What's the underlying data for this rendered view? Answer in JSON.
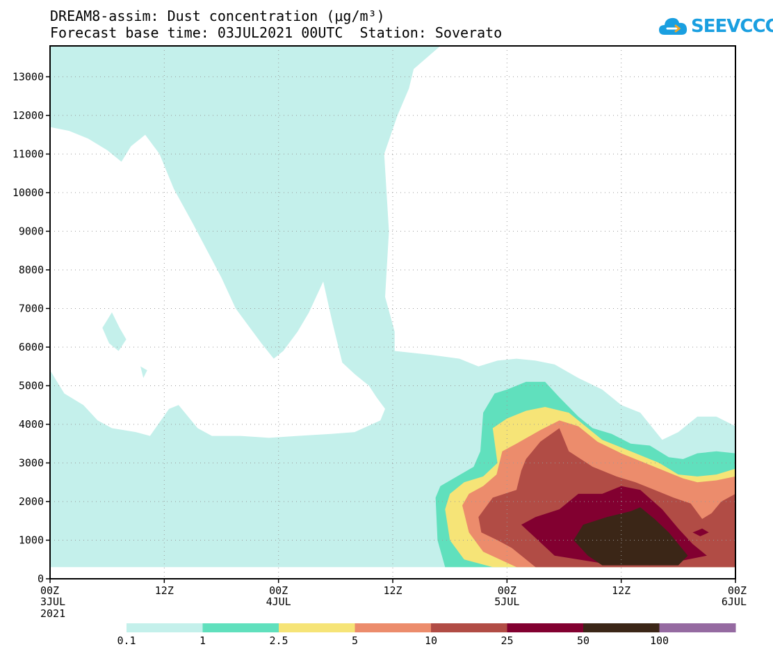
{
  "title": "DREAM8-assim: Dust concentration (μg/m³)",
  "subtitle": "Forecast base time: 03JUL2021 00UTC  Station: Soverato",
  "logo": {
    "text": "SEEVCCC",
    "icon": "cloud-icon",
    "color": "#1a9fe0"
  },
  "chart_data": {
    "type": "heatmap",
    "subtype": "filled-contour time-height cross-section",
    "title": "DREAM8-assim: Dust concentration (μg/m³)",
    "subtitle": "Forecast base time: 03JUL2021 00UTC  Station: Soverato",
    "xlabel": "",
    "ylabel": "",
    "x_ticks": [
      {
        "hour": 0,
        "label": "00Z",
        "sub": "3JUL",
        "sub2": "2021"
      },
      {
        "hour": 12,
        "label": "12Z",
        "sub": "",
        "sub2": ""
      },
      {
        "hour": 24,
        "label": "00Z",
        "sub": "4JUL",
        "sub2": ""
      },
      {
        "hour": 36,
        "label": "12Z",
        "sub": "",
        "sub2": ""
      },
      {
        "hour": 48,
        "label": "00Z",
        "sub": "5JUL",
        "sub2": ""
      },
      {
        "hour": 60,
        "label": "12Z",
        "sub": "",
        "sub2": ""
      },
      {
        "hour": 72,
        "label": "00Z",
        "sub": "6JUL",
        "sub2": ""
      }
    ],
    "xlim": [
      0,
      72
    ],
    "y_ticks": [
      0,
      1000,
      2000,
      3000,
      4000,
      5000,
      6000,
      7000,
      8000,
      9000,
      10000,
      11000,
      12000,
      13000
    ],
    "ylim": [
      0,
      13800
    ],
    "grid": true,
    "legend": {
      "placement": "bottom",
      "levels": [
        "0.1",
        "1",
        "2.5",
        "5",
        "10",
        "25",
        "50",
        "100"
      ],
      "colors": [
        "#c4f0eb",
        "#60e0bd",
        "#f6e477",
        "#ec8c6c",
        "#b14c45",
        "#820030",
        "#3b2617",
        "#956aa1"
      ]
    },
    "contours": [
      {
        "level": "0.1",
        "color": "#c4f0eb",
        "points": [
          [
            0,
            300
          ],
          [
            72,
            300
          ],
          [
            72,
            3950
          ],
          [
            70,
            4200
          ],
          [
            68,
            4200
          ],
          [
            66,
            3800
          ],
          [
            64.3,
            3600
          ],
          [
            62,
            4300
          ],
          [
            60,
            4500
          ],
          [
            58,
            4900
          ],
          [
            55.5,
            5200
          ],
          [
            53,
            5550
          ],
          [
            51,
            5650
          ],
          [
            49,
            5700
          ],
          [
            47,
            5650
          ],
          [
            45,
            5500
          ],
          [
            43,
            5700
          ],
          [
            40,
            5800
          ],
          [
            36.2,
            5900
          ],
          [
            36.2,
            6400
          ],
          [
            35.2,
            7300
          ],
          [
            35.6,
            9000
          ],
          [
            35.1,
            11000
          ],
          [
            36.5,
            12000
          ],
          [
            37.7,
            12700
          ],
          [
            38.2,
            13200
          ],
          [
            41,
            13800
          ],
          [
            0,
            13800
          ]
        ]
      },
      {
        "level": "0.1-hole-a",
        "color": "#ffffff",
        "points": [
          [
            0,
            11700
          ],
          [
            2,
            11600
          ],
          [
            4,
            11400
          ],
          [
            6,
            11100
          ],
          [
            7.5,
            10800
          ],
          [
            8.5,
            11200
          ],
          [
            10,
            11500
          ],
          [
            11.5,
            11000
          ],
          [
            13,
            10100
          ],
          [
            15,
            9200
          ],
          [
            16.5,
            8500
          ],
          [
            18,
            7800
          ],
          [
            19.5,
            7000
          ],
          [
            21,
            6500
          ],
          [
            22.2,
            6100
          ],
          [
            23.5,
            5700
          ],
          [
            24.5,
            5900
          ],
          [
            26,
            6400
          ],
          [
            27.2,
            6900
          ],
          [
            28.7,
            7700
          ],
          [
            29.7,
            6600
          ],
          [
            30.7,
            5600
          ],
          [
            32,
            5300
          ],
          [
            33.5,
            5000
          ],
          [
            34.3,
            4700
          ],
          [
            35.2,
            4400
          ],
          [
            34.7,
            4100
          ],
          [
            32,
            3800
          ],
          [
            29.5,
            3750
          ],
          [
            26,
            3700
          ],
          [
            23,
            3650
          ],
          [
            20,
            3700
          ],
          [
            17,
            3700
          ],
          [
            15.5,
            3900
          ],
          [
            13.5,
            4500
          ],
          [
            12.5,
            4400
          ],
          [
            10.5,
            3700
          ],
          [
            9,
            3800
          ],
          [
            6.5,
            3900
          ],
          [
            5,
            4100
          ],
          [
            3.5,
            4500
          ],
          [
            1.5,
            4800
          ],
          [
            0,
            5400
          ]
        ]
      },
      {
        "level": "0.1-hole-b",
        "color": "#c4f0eb",
        "points": [
          [
            5.5,
            6500
          ],
          [
            6.5,
            6900
          ],
          [
            7.3,
            6500
          ],
          [
            8,
            6200
          ],
          [
            7.2,
            5900
          ],
          [
            6.2,
            6100
          ]
        ]
      },
      {
        "level": "0.1-hole-c",
        "color": "#c4f0eb",
        "points": [
          [
            9.5,
            5500
          ],
          [
            10.2,
            5400
          ],
          [
            9.8,
            5200
          ]
        ]
      },
      {
        "level": "1",
        "color": "#60e0bd",
        "points": [
          [
            45.5,
            300
          ],
          [
            72,
            300
          ],
          [
            72,
            3250
          ],
          [
            70,
            3300
          ],
          [
            68,
            3250
          ],
          [
            66.5,
            3100
          ],
          [
            65,
            3150
          ],
          [
            63,
            3450
          ],
          [
            61,
            3500
          ],
          [
            59,
            3750
          ],
          [
            57,
            3900
          ],
          [
            55.5,
            4200
          ],
          [
            53.5,
            4700
          ],
          [
            52,
            5100
          ],
          [
            50,
            5100
          ],
          [
            48,
            4900
          ],
          [
            46.7,
            4800
          ],
          [
            45.5,
            4300
          ],
          [
            45.2,
            3300
          ],
          [
            44.5,
            2900
          ],
          [
            41,
            2400
          ],
          [
            40.5,
            2100
          ],
          [
            40.7,
            1000
          ],
          [
            41.5,
            300
          ]
        ]
      },
      {
        "level": "2.5",
        "color": "#f6e477",
        "points": [
          [
            46.5,
            300
          ],
          [
            72,
            300
          ],
          [
            72,
            2850
          ],
          [
            70,
            2700
          ],
          [
            68,
            2650
          ],
          [
            66,
            2700
          ],
          [
            64,
            3000
          ],
          [
            62,
            3200
          ],
          [
            60,
            3400
          ],
          [
            58,
            3600
          ],
          [
            56,
            4000
          ],
          [
            54.5,
            4300
          ],
          [
            52,
            4450
          ],
          [
            50,
            4350
          ],
          [
            48,
            4150
          ],
          [
            46.5,
            3900
          ],
          [
            47,
            3000
          ],
          [
            45.5,
            2650
          ],
          [
            43.5,
            2500
          ],
          [
            42,
            2200
          ],
          [
            41.5,
            1800
          ],
          [
            42,
            1000
          ],
          [
            43.5,
            500
          ]
        ]
      },
      {
        "level": "5",
        "color": "#ec8c6c",
        "points": [
          [
            49,
            300
          ],
          [
            72,
            300
          ],
          [
            72,
            2650
          ],
          [
            70,
            2550
          ],
          [
            68,
            2500
          ],
          [
            66.5,
            2600
          ],
          [
            64.5,
            2800
          ],
          [
            62.5,
            3000
          ],
          [
            60,
            3250
          ],
          [
            57.5,
            3550
          ],
          [
            55.5,
            3950
          ],
          [
            53.5,
            4100
          ],
          [
            51.5,
            3850
          ],
          [
            49,
            3500
          ],
          [
            47.5,
            3300
          ],
          [
            46.9,
            2700
          ],
          [
            45.5,
            2400
          ],
          [
            44,
            2200
          ],
          [
            43.3,
            1900
          ],
          [
            44,
            1200
          ],
          [
            45.5,
            700
          ]
        ]
      },
      {
        "level": "10",
        "color": "#b14c45",
        "points": [
          [
            51,
            300
          ],
          [
            72,
            300
          ],
          [
            72,
            2200
          ],
          [
            70.5,
            2000
          ],
          [
            69.5,
            1700
          ],
          [
            68.5,
            1550
          ],
          [
            67.3,
            1950
          ],
          [
            65.5,
            2100
          ],
          [
            63.5,
            2300
          ],
          [
            61.5,
            2500
          ],
          [
            59.5,
            2650
          ],
          [
            57,
            2900
          ],
          [
            54.5,
            3300
          ],
          [
            53.5,
            3900
          ],
          [
            51.5,
            3550
          ],
          [
            50,
            3100
          ],
          [
            49.5,
            2800
          ],
          [
            49,
            2300
          ],
          [
            46.5,
            2100
          ],
          [
            45,
            1600
          ],
          [
            45.3,
            1200
          ],
          [
            47,
            1000
          ],
          [
            48.5,
            800
          ]
        ]
      },
      {
        "level": "25",
        "color": "#820030",
        "points": [
          [
            53,
            600
          ],
          [
            58,
            400
          ],
          [
            63,
            350
          ],
          [
            66,
            450
          ],
          [
            69,
            600
          ],
          [
            67.5,
            900
          ],
          [
            66,
            1300
          ],
          [
            64.3,
            1800
          ],
          [
            62,
            2300
          ],
          [
            60,
            2400
          ],
          [
            58,
            2200
          ],
          [
            55.5,
            2200
          ],
          [
            53.5,
            1800
          ],
          [
            51,
            1600
          ],
          [
            49.5,
            1400
          ]
        ]
      },
      {
        "level": "25-patch",
        "color": "#820030",
        "points": [
          [
            67.5,
            1200
          ],
          [
            68.5,
            1300
          ],
          [
            69.2,
            1200
          ],
          [
            68.3,
            1100
          ]
        ]
      },
      {
        "level": "50",
        "color": "#3b2617",
        "points": [
          [
            56.5,
            600
          ],
          [
            58,
            350
          ],
          [
            66,
            350
          ],
          [
            67,
            600
          ],
          [
            65,
            1200
          ],
          [
            63.5,
            1550
          ],
          [
            62,
            1850
          ],
          [
            61,
            1750
          ],
          [
            58.5,
            1600
          ],
          [
            56,
            1400
          ],
          [
            55,
            1000
          ]
        ]
      }
    ]
  }
}
